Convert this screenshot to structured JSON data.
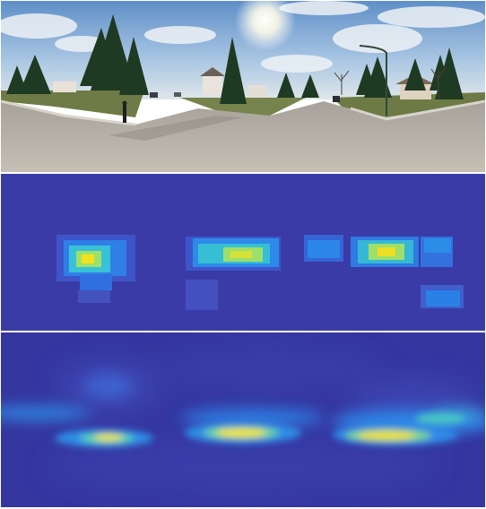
{
  "figure": {
    "panels": [
      {
        "id": "street-panorama",
        "kind": "photo"
      },
      {
        "id": "coarse-saliency-map",
        "kind": "heatmap",
        "colormap": "jet"
      },
      {
        "id": "fine-saliency-map",
        "kind": "heatmap",
        "colormap": "jet"
      }
    ]
  },
  "colors": {
    "sky": "#8fb6dc",
    "road": "#b9b2a6",
    "grass": "#6a7a48",
    "heat_background": "#3a3ba6",
    "heat_low": "#2a6de0",
    "heat_mid": "#2fc0c0",
    "heat_high": "#f2e21a"
  }
}
